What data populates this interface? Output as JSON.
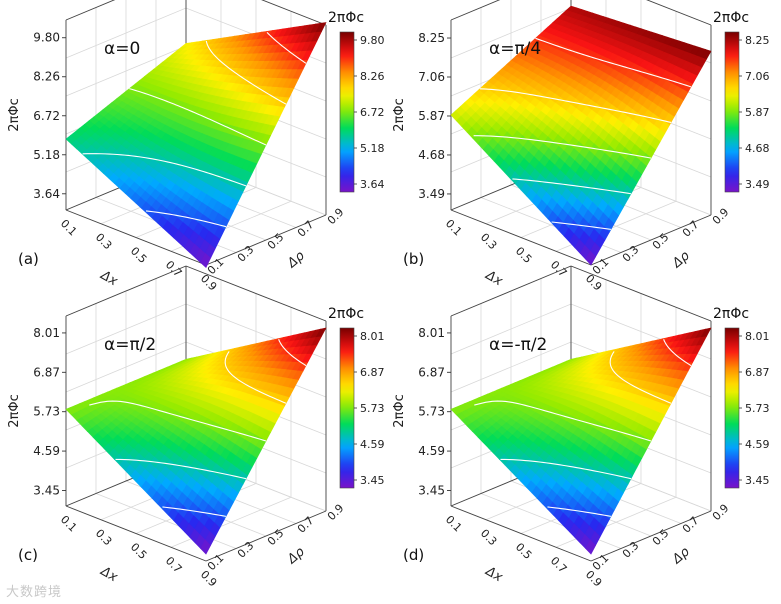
{
  "figure": {
    "watermark": "大数跨境"
  },
  "chart_data": [
    {
      "type": "surface",
      "panel_label": "(a)",
      "annotation": "α=0",
      "zlabel": "2πΦc",
      "colorbar_title": "2πΦc",
      "xlabel": "Δx",
      "ylabel": "Δρ",
      "x_ticks": [
        "0.1",
        "0.3",
        "0.5",
        "0.7",
        "0.9"
      ],
      "y_ticks": [
        "0.1",
        "0.3",
        "0.5",
        "0.7",
        "0.9"
      ],
      "z_ticks": [
        "3.64",
        "5.18",
        "6.72",
        "8.26",
        "9.80"
      ],
      "colorbar_ticks": [
        "3.64",
        "5.18",
        "6.72",
        "8.26",
        "9.80"
      ],
      "zlim": [
        3.0,
        10.5
      ],
      "corners": {
        "x_min_y_min": 5.8,
        "x_max_y_min": 2.9,
        "x_min_y_max": 7.6,
        "x_max_y_max": 10.6
      }
    },
    {
      "type": "surface",
      "panel_label": "(b)",
      "annotation": "α=π/4",
      "zlabel": "2πΦc",
      "colorbar_title": "2πΦc",
      "xlabel": "Δx",
      "ylabel": "Δρ",
      "x_ticks": [
        "0.1",
        "0.3",
        "0.5",
        "0.7",
        "0.9"
      ],
      "y_ticks": [
        "0.1",
        "0.3",
        "0.5",
        "0.7",
        "0.9"
      ],
      "z_ticks": [
        "3.49",
        "4.68",
        "5.87",
        "7.06",
        "8.25"
      ],
      "colorbar_ticks": [
        "3.49",
        "4.68",
        "5.87",
        "7.06",
        "8.25"
      ],
      "zlim": [
        3.0,
        8.8
      ],
      "corners": {
        "x_min_y_min": 5.9,
        "x_max_y_min": 3.0,
        "x_min_y_max": 7.7,
        "x_max_y_max": 8.0
      }
    },
    {
      "type": "surface",
      "panel_label": "(c)",
      "annotation": "α=π/2",
      "zlabel": "2πΦc",
      "colorbar_title": "2πΦc",
      "xlabel": "Δx",
      "ylabel": "Δρ",
      "x_ticks": [
        "0.1",
        "0.3",
        "0.5",
        "0.7",
        "0.9"
      ],
      "y_ticks": [
        "0.1",
        "0.3",
        "0.5",
        "0.7",
        "0.9"
      ],
      "z_ticks": [
        "3.45",
        "4.59",
        "5.73",
        "6.87",
        "8.01"
      ],
      "colorbar_ticks": [
        "3.45",
        "4.59",
        "5.73",
        "6.87",
        "8.01"
      ],
      "zlim": [
        3.0,
        8.5
      ],
      "corners": {
        "x_min_y_min": 5.8,
        "x_max_y_min": 3.2,
        "x_min_y_max": 5.8,
        "x_max_y_max": 8.3
      }
    },
    {
      "type": "surface",
      "panel_label": "(d)",
      "annotation": "α=-π/2",
      "zlabel": "2πΦc",
      "colorbar_title": "2πΦc",
      "xlabel": "Δx",
      "ylabel": "Δρ",
      "x_ticks": [
        "0.1",
        "0.3",
        "0.5",
        "0.7",
        "0.9"
      ],
      "y_ticks": [
        "0.1",
        "0.3",
        "0.5",
        "0.7",
        "0.9"
      ],
      "z_ticks": [
        "3.45",
        "4.59",
        "5.73",
        "6.87",
        "8.01"
      ],
      "colorbar_ticks": [
        "3.45",
        "4.59",
        "5.73",
        "6.87",
        "8.01"
      ],
      "zlim": [
        3.0,
        8.5
      ],
      "corners": {
        "x_min_y_min": 5.8,
        "x_max_y_min": 3.2,
        "x_min_y_max": 5.8,
        "x_max_y_max": 8.3
      }
    }
  ]
}
